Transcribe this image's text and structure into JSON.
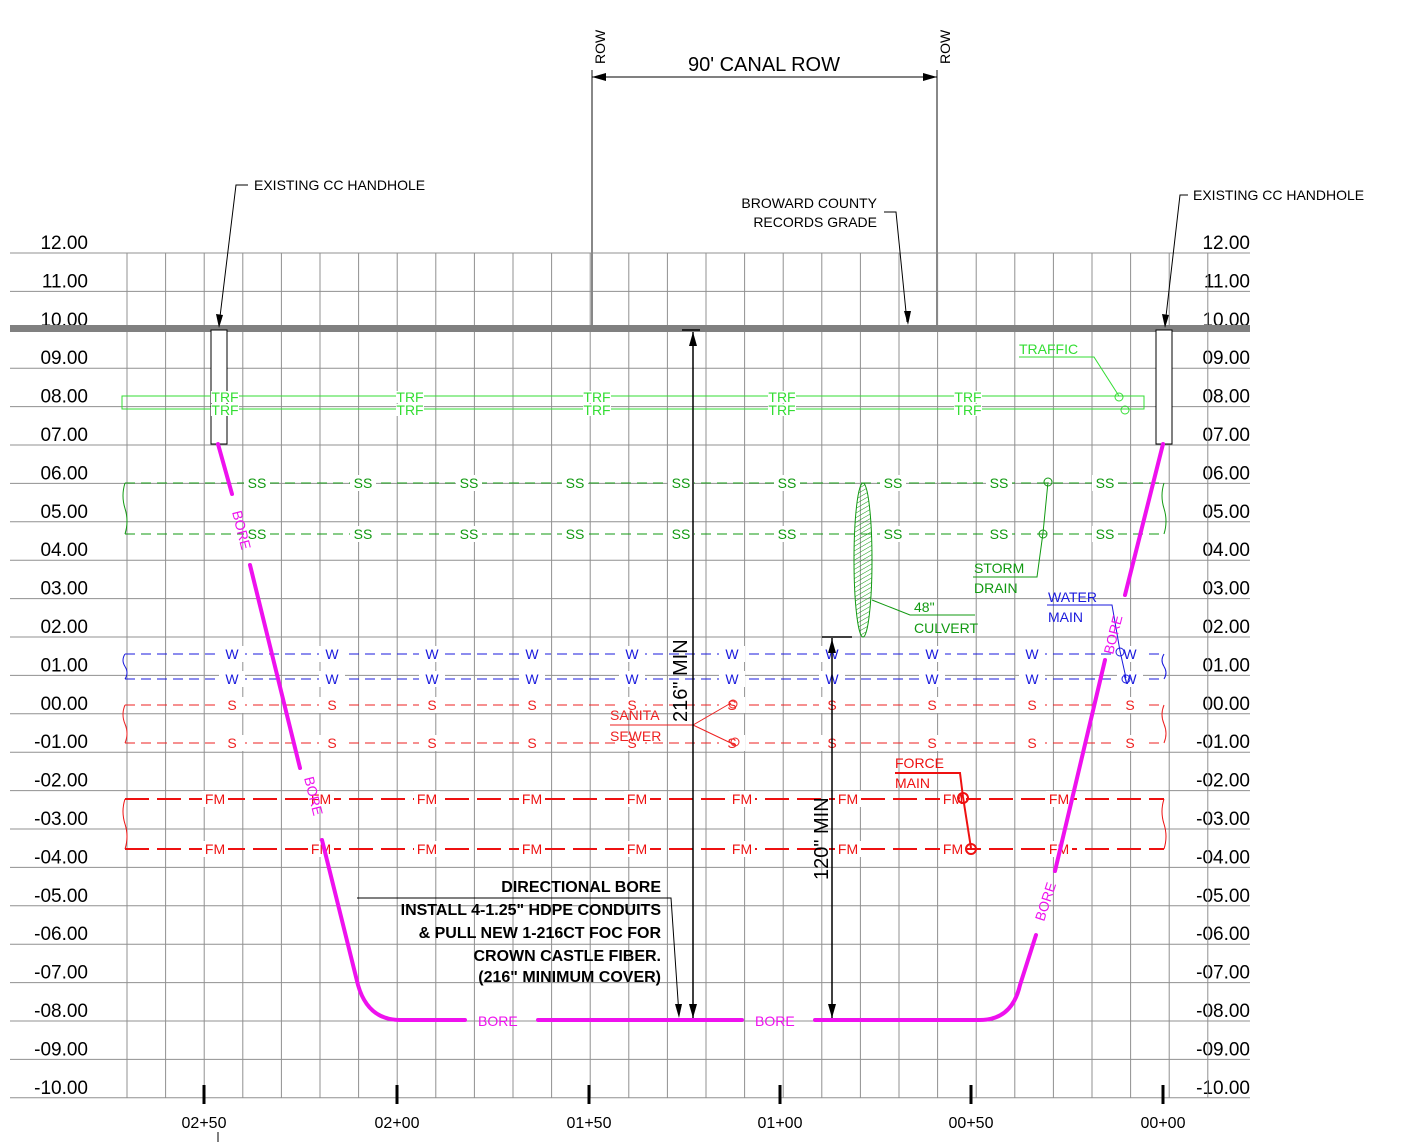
{
  "header": {
    "row_left": "ROW",
    "row_right": "ROW",
    "canal_row": "90' CANAL ROW"
  },
  "callouts": {
    "handhole_left": "EXISTING CC HANDHOLE",
    "handhole_right": "EXISTING CC HANDHOLE",
    "grade_line1": "BROWARD COUNTY",
    "grade_line2": "RECORDS GRADE",
    "traffic": "TRAFFIC",
    "storm_line1": "STORM",
    "storm_line2": "DRAIN",
    "water_line1": "WATER",
    "water_line2": "MAIN",
    "culvert_line1": "48\"",
    "culvert_line2": "CULVERT",
    "sanitary_line1": "SANITA",
    "sanitary_line2": "SEWER",
    "force_line1": "FORCE",
    "force_line2": "MAIN"
  },
  "dimensions": {
    "min_cover_bore": "216\" MIN",
    "min_cover_culvert": "120\" MIN"
  },
  "bore_note": [
    "DIRECTIONAL BORE",
    "INSTALL 4-1.25\" HDPE CONDUITS",
    "& PULL NEW 1-216CT FOC FOR",
    "CROWN CASTLE FIBER.",
    "(216\" MINIMUM COVER)"
  ],
  "elevation_labels": [
    "12.00",
    "11.00",
    "10.00",
    "09.00",
    "08.00",
    "07.00",
    "06.00",
    "05.00",
    "04.00",
    "03.00",
    "02.00",
    "01.00",
    "00.00",
    "-01.00",
    "-02.00",
    "-03.00",
    "-04.00",
    "-05.00",
    "-06.00",
    "-07.00",
    "-08.00",
    "-09.00",
    "-10.00"
  ],
  "station_labels": [
    "02+50",
    "02+00",
    "01+50",
    "01+00",
    "00+50",
    "00+00"
  ],
  "utility_codes": {
    "traffic": "TRF",
    "storm": "SS",
    "water": "W",
    "sanitary": "S",
    "force": "FM",
    "bore": "BORE"
  },
  "colors": {
    "traffic": "#33dd33",
    "storm": "#119911",
    "water": "#1a1add",
    "sanitary": "#ee2222",
    "force": "#ee1111",
    "bore": "#ee11ee",
    "grade": "#808080",
    "grid": "#909090"
  }
}
